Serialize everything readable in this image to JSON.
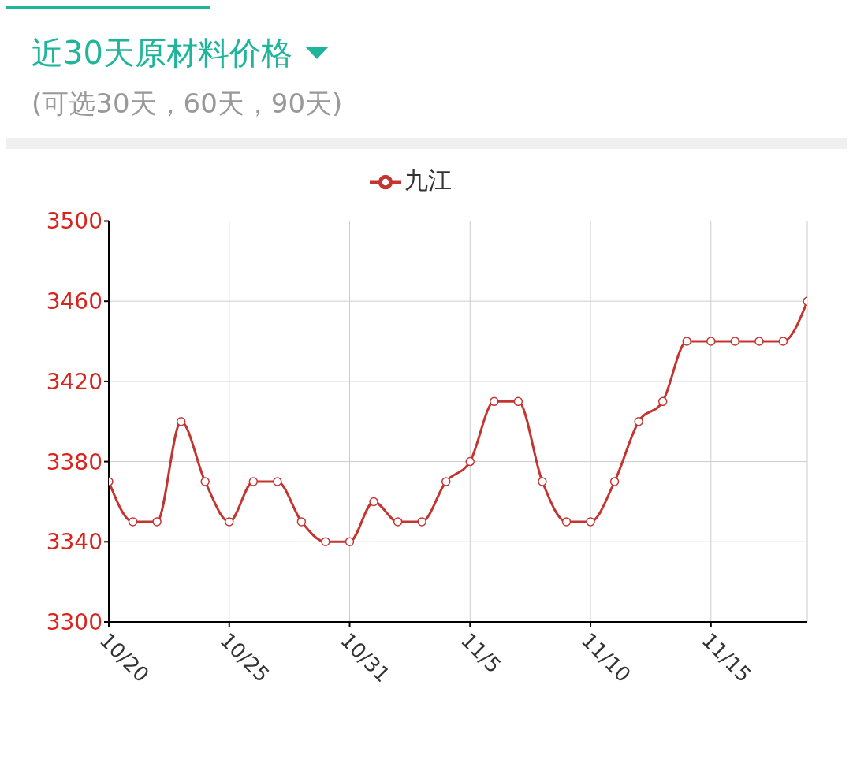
{
  "chart_data": {
    "type": "line",
    "title": "近30天原材料价格",
    "subtitle": "(可选30天，60天，90天)",
    "categories": [
      "10/20",
      null,
      null,
      null,
      null,
      "10/25",
      null,
      null,
      null,
      null,
      "10/31",
      null,
      null,
      null,
      null,
      "11/5",
      null,
      null,
      null,
      null,
      "11/10",
      null,
      null,
      null,
      null,
      "11/15",
      null,
      null,
      null,
      null
    ],
    "series": [
      {
        "name": "九江",
        "color": "#c23531",
        "values": [
          3370,
          3350,
          3350,
          3400,
          3370,
          3350,
          3370,
          3370,
          3350,
          3340,
          3340,
          3360,
          3350,
          3350,
          3370,
          3380,
          3410,
          3410,
          3370,
          3350,
          3350,
          3370,
          3400,
          3410,
          3440,
          3440,
          3440,
          3440,
          3440,
          3460
        ]
      }
    ],
    "ylim": [
      3300,
      3500
    ],
    "yticks": [
      3300,
      3340,
      3380,
      3420,
      3460,
      3500
    ],
    "grid": true,
    "legend": "top",
    "marker": "circle",
    "line_style": "solid"
  }
}
